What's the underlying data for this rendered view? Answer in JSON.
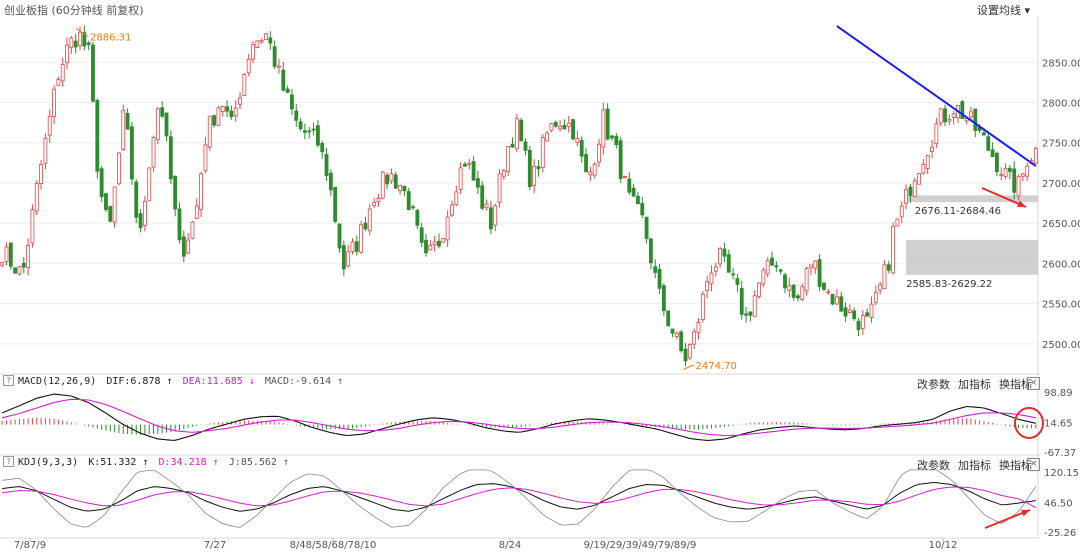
{
  "header": {
    "title": "创业板指 (60分钟线 前复权)",
    "settings": "设置均线",
    "settings_arrow": "▾"
  },
  "chart_data": [
    {
      "type": "candlestick",
      "title": "创业板指",
      "y_ticks": [
        "2850.00",
        "2800.00",
        "2750.00",
        "2700.00",
        "2650.00",
        "2600.00",
        "2550.00",
        "2500.00"
      ],
      "ylim": [
        2465,
        2905
      ],
      "x_tick_labels": [
        "7/87/9",
        "7/27",
        "8/48/58/68/78/10",
        "8/24",
        "9/19/29/39/49/79/89/9",
        "10/12"
      ],
      "annotations": {
        "high_label": "2886.31",
        "low_label": "2474.70",
        "gap_upper_label": "2676.11-2684.46",
        "gap_lower_label": "2585.83-2629.22"
      },
      "gaps": [
        {
          "low": 2676.11,
          "high": 2684.46
        },
        {
          "low": 2585.83,
          "high": 2629.22
        }
      ],
      "trendline": {
        "from": {
          "index": 148,
          "price": 2895
        },
        "to": {
          "index": 237,
          "price": 2721
        }
      },
      "colors": {
        "up": "#e64545",
        "down": "#2e8b2e",
        "trendline": "#1a1aff",
        "arrow": "#e52b2b",
        "gap": "#c8c8c8"
      },
      "anchors": [
        [
          0,
          2615
        ],
        [
          4,
          2585
        ],
        [
          7,
          2700
        ],
        [
          11,
          2835
        ],
        [
          13,
          2870
        ],
        [
          15,
          2886
        ],
        [
          17,
          2860
        ],
        [
          19,
          2700
        ],
        [
          21,
          2635
        ],
        [
          24,
          2790
        ],
        [
          27,
          2625
        ],
        [
          29,
          2735
        ],
        [
          31,
          2810
        ],
        [
          35,
          2610
        ],
        [
          38,
          2660
        ],
        [
          40,
          2760
        ],
        [
          43,
          2805
        ],
        [
          45,
          2770
        ],
        [
          49,
          2875
        ],
        [
          52,
          2885
        ],
        [
          55,
          2820
        ],
        [
          58,
          2770
        ],
        [
          62,
          2750
        ],
        [
          64,
          2710
        ],
        [
          67,
          2595
        ],
        [
          70,
          2630
        ],
        [
          73,
          2685
        ],
        [
          76,
          2710
        ],
        [
          78,
          2700
        ],
        [
          80,
          2675
        ],
        [
          83,
          2600
        ],
        [
          86,
          2630
        ],
        [
          89,
          2700
        ],
        [
          91,
          2730
        ],
        [
          94,
          2680
        ],
        [
          96,
          2650
        ],
        [
          99,
          2740
        ],
        [
          101,
          2770
        ],
        [
          104,
          2700
        ],
        [
          107,
          2760
        ],
        [
          109,
          2780
        ],
        [
          112,
          2770
        ],
        [
          115,
          2700
        ],
        [
          118,
          2780
        ],
        [
          121,
          2730
        ],
        [
          123,
          2680
        ],
        [
          126,
          2650
        ],
        [
          129,
          2560
        ],
        [
          132,
          2510
        ],
        [
          134,
          2480
        ],
        [
          136,
          2510
        ],
        [
          139,
          2595
        ],
        [
          141,
          2605
        ],
        [
          144,
          2570
        ],
        [
          146,
          2530
        ],
        [
          149,
          2580
        ],
        [
          152,
          2605
        ],
        [
          154,
          2575
        ],
        [
          156,
          2550
        ],
        [
          159,
          2605
        ],
        [
          162,
          2565
        ],
        [
          165,
          2545
        ],
        [
          168,
          2530
        ],
        [
          170,
          2525
        ],
        [
          172,
          2560
        ],
        [
          174,
          2600
        ],
        [
          175,
          2640
        ],
        [
          177,
          2670
        ],
        [
          179,
          2710
        ],
        [
          181,
          2735
        ],
        [
          184,
          2778
        ],
        [
          187,
          2795
        ],
        [
          189,
          2785
        ],
        [
          192,
          2760
        ],
        [
          194,
          2740
        ],
        [
          196,
          2720
        ],
        [
          198,
          2700
        ],
        [
          200,
          2695
        ],
        [
          201,
          2730
        ],
        [
          203,
          2740
        ]
      ]
    },
    {
      "type": "line",
      "title": "MACD(12,26,9)",
      "labels": {
        "dif": "DIF:6.878",
        "dea": "DEA:11.685",
        "macd": "MACD:-9.614"
      },
      "y_ticks": [
        "98.89",
        "14.65",
        "-67.37"
      ],
      "series": [
        {
          "name": "DIF",
          "values": [
            40,
            62,
            85,
            98,
            92,
            72,
            40,
            5,
            -22,
            -40,
            -45,
            -30,
            -10,
            5,
            20,
            28,
            30,
            15,
            -5,
            -20,
            -30,
            -25,
            -10,
            5,
            18,
            25,
            20,
            10,
            -5,
            -15,
            -20,
            -10,
            5,
            15,
            22,
            18,
            10,
            0,
            -10,
            -25,
            -40,
            -45,
            -40,
            -25,
            -12,
            -5,
            0,
            -5,
            -10,
            -12,
            -8,
            0,
            5,
            10,
            20,
            45,
            60,
            55,
            38,
            20,
            8
          ]
        },
        {
          "name": "DEA",
          "values": [
            25,
            38,
            55,
            72,
            82,
            80,
            66,
            45,
            22,
            0,
            -15,
            -20,
            -15,
            -8,
            2,
            12,
            18,
            18,
            10,
            0,
            -10,
            -15,
            -14,
            -8,
            2,
            10,
            14,
            12,
            6,
            -2,
            -8,
            -9,
            -4,
            3,
            10,
            12,
            11,
            7,
            0,
            -8,
            -18,
            -26,
            -30,
            -28,
            -22,
            -16,
            -10,
            -7,
            -7,
            -8,
            -7,
            -4,
            -1,
            3,
            8,
            20,
            32,
            40,
            40,
            35,
            25
          ]
        }
      ]
    },
    {
      "type": "line",
      "title": "KDJ(9,3,3)",
      "labels": {
        "k": "K:51.332",
        "d": "D:34.218",
        "j": "J:85.562"
      },
      "y_ticks": [
        "120.15",
        "46.50",
        "-25.26"
      ],
      "series": [
        {
          "name": "K",
          "values": [
            80,
            85,
            75,
            55,
            35,
            25,
            30,
            50,
            75,
            85,
            80,
            70,
            50,
            35,
            25,
            30,
            45,
            65,
            80,
            85,
            75,
            60,
            45,
            30,
            25,
            35,
            55,
            75,
            90,
            92,
            85,
            70,
            50,
            35,
            30,
            40,
            60,
            80,
            90,
            88,
            75,
            60,
            45,
            35,
            30,
            35,
            45,
            55,
            60,
            50,
            40,
            30,
            40,
            70,
            90,
            95,
            90,
            75,
            55,
            40,
            45,
            51
          ]
        },
        {
          "name": "D",
          "values": [
            70,
            75,
            74,
            66,
            55,
            45,
            38,
            40,
            52,
            65,
            72,
            73,
            65,
            55,
            45,
            38,
            40,
            50,
            62,
            72,
            74,
            70,
            62,
            52,
            42,
            38,
            42,
            55,
            68,
            78,
            82,
            78,
            68,
            57,
            48,
            44,
            48,
            58,
            70,
            78,
            78,
            72,
            63,
            53,
            45,
            40,
            41,
            46,
            52,
            52,
            48,
            42,
            41,
            50,
            65,
            78,
            84,
            83,
            75,
            63,
            55,
            34
          ]
        }
      ]
    }
  ],
  "macd_panel": {
    "qmark": "?",
    "name": "MACD(12,26,9)",
    "dif": "DIF:6.878",
    "dif_arrow": "↑",
    "dea": "DEA:11.685",
    "dea_arrow": "↓",
    "macd": "MACD:-9.614",
    "macd_arrow": "↑",
    "btn_params": "改参数",
    "btn_add": "加指标",
    "btn_switch": "换指标",
    "close": "×"
  },
  "kdj_panel": {
    "qmark": "?",
    "name": "KDJ(9,3,3)",
    "k": "K:51.332",
    "k_arrow": "↑",
    "d": "D:34.218",
    "d_arrow": "↑",
    "j": "J:85.562",
    "j_arrow": "↑",
    "btn_params": "改参数",
    "btn_add": "加指标",
    "btn_switch": "换指标",
    "close": "×"
  }
}
